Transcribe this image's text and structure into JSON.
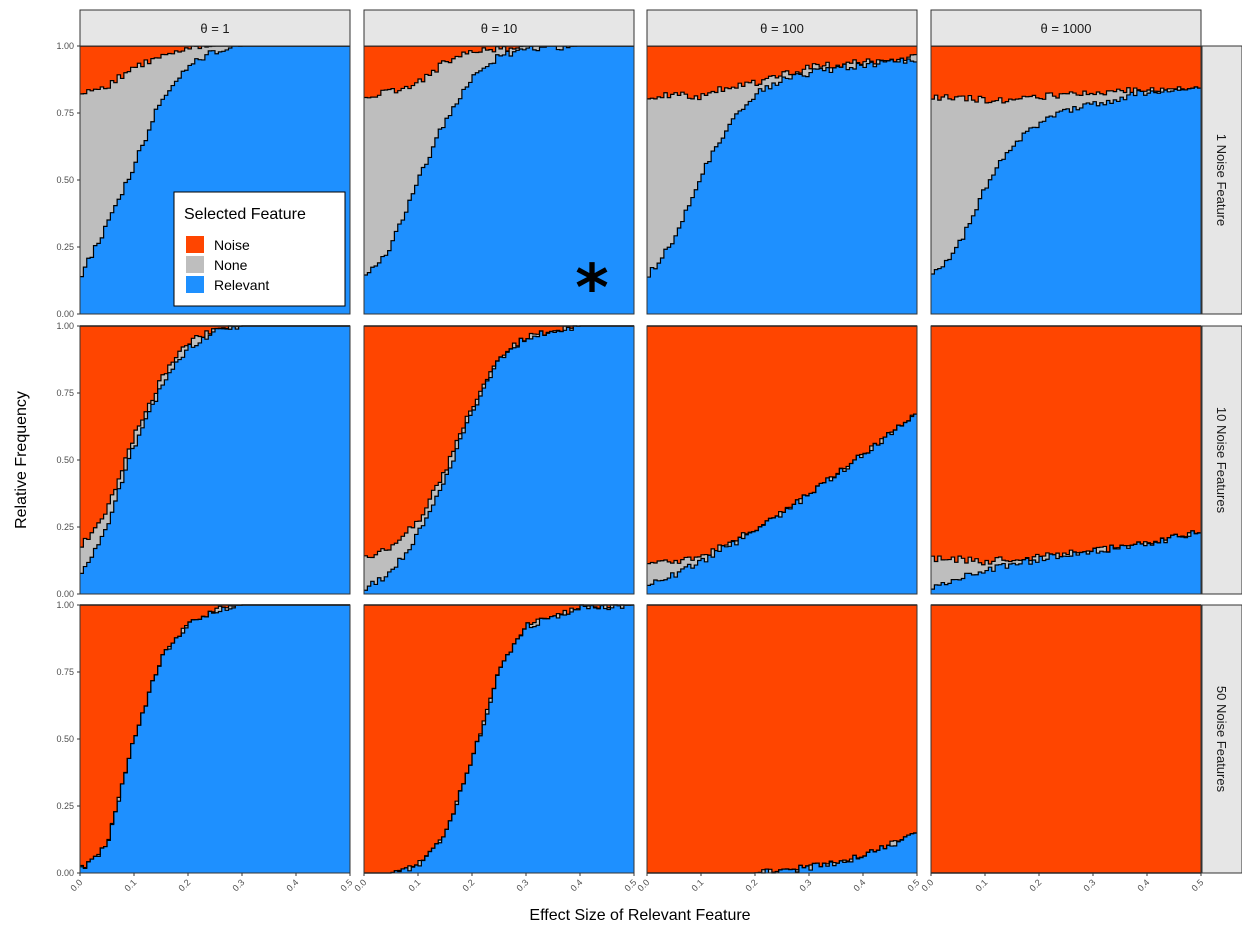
{
  "chart_data": {
    "type": "area",
    "subtype": "stacked-step-facet-grid",
    "xlabel": "Effect Size of Relevant Feature",
    "ylabel": "Relative Frequency",
    "xlim": [
      0,
      0.5
    ],
    "ylim": [
      0,
      1
    ],
    "x_ticks": [
      "0.0",
      "0.1",
      "0.2",
      "0.3",
      "0.4",
      "0.5"
    ],
    "x_tick_values": [
      0,
      0.1,
      0.2,
      0.3,
      0.4,
      0.5
    ],
    "y_ticks": [
      "0.00",
      "0.25",
      "0.50",
      "0.75",
      "1.00"
    ],
    "y_tick_values": [
      0,
      0.25,
      0.5,
      0.75,
      1
    ],
    "columns": [
      {
        "label": "θ = 1"
      },
      {
        "label": "θ = 10"
      },
      {
        "label": "θ = 100"
      },
      {
        "label": "θ = 1000"
      }
    ],
    "rows": [
      {
        "label": "1 Noise Feature"
      },
      {
        "label": "10 Noise Features"
      },
      {
        "label": "50 Noise Features"
      }
    ],
    "legend": {
      "title": "Selected Feature",
      "position": "inside-top-left-panel",
      "entries": [
        {
          "name": "Noise",
          "color": "#FF4500"
        },
        {
          "name": "None",
          "color": "#BEBEBE"
        },
        {
          "name": "Relevant",
          "color": "#1E90FF"
        }
      ]
    },
    "annotation": {
      "text": "*",
      "panel": [
        0,
        1
      ],
      "x": 0.43,
      "y": 0.12
    },
    "stack_order_bottom_to_top": [
      "Relevant",
      "None",
      "Noise"
    ],
    "panels": [
      [
        {
          "relevant": {
            "x": [
              0,
              0.05,
              0.1,
              0.15,
              0.2,
              0.25,
              0.3,
              0.4,
              0.5
            ],
            "y": [
              0.14,
              0.33,
              0.55,
              0.8,
              0.93,
              0.98,
              1.0,
              1.0,
              1.0
            ]
          },
          "none_top": {
            "x": [
              0,
              0.05,
              0.1,
              0.15,
              0.2,
              0.25,
              0.3,
              0.4,
              0.5
            ],
            "y": [
              0.82,
              0.85,
              0.92,
              0.96,
              0.99,
              1.0,
              1.0,
              1.0,
              1.0
            ]
          }
        },
        {
          "relevant": {
            "x": [
              0,
              0.05,
              0.1,
              0.15,
              0.2,
              0.25,
              0.3,
              0.4,
              0.5
            ],
            "y": [
              0.13,
              0.25,
              0.5,
              0.72,
              0.88,
              0.96,
              0.99,
              1.0,
              1.0
            ]
          },
          "none_top": {
            "x": [
              0,
              0.05,
              0.1,
              0.15,
              0.2,
              0.25,
              0.3,
              0.4,
              0.5
            ],
            "y": [
              0.81,
              0.83,
              0.86,
              0.94,
              0.98,
              0.99,
              1.0,
              1.0,
              1.0
            ]
          }
        },
        {
          "relevant": {
            "x": [
              0,
              0.05,
              0.1,
              0.15,
              0.2,
              0.25,
              0.3,
              0.4,
              0.5
            ],
            "y": [
              0.14,
              0.27,
              0.52,
              0.7,
              0.82,
              0.87,
              0.9,
              0.93,
              0.95
            ]
          },
          "none_top": {
            "x": [
              0,
              0.05,
              0.1,
              0.15,
              0.2,
              0.25,
              0.3,
              0.4,
              0.5
            ],
            "y": [
              0.81,
              0.82,
              0.81,
              0.85,
              0.86,
              0.89,
              0.92,
              0.94,
              0.96
            ]
          }
        },
        {
          "relevant": {
            "x": [
              0,
              0.05,
              0.1,
              0.15,
              0.2,
              0.25,
              0.3,
              0.4,
              0.5
            ],
            "y": [
              0.14,
              0.25,
              0.47,
              0.63,
              0.71,
              0.76,
              0.78,
              0.83,
              0.84
            ]
          },
          "none_top": {
            "x": [
              0,
              0.05,
              0.1,
              0.15,
              0.2,
              0.25,
              0.3,
              0.4,
              0.5
            ],
            "y": [
              0.81,
              0.81,
              0.8,
              0.8,
              0.81,
              0.82,
              0.82,
              0.84,
              0.84
            ]
          }
        }
      ],
      [
        {
          "relevant": {
            "x": [
              0,
              0.05,
              0.1,
              0.15,
              0.2,
              0.25,
              0.3,
              0.4,
              0.5
            ],
            "y": [
              0.07,
              0.25,
              0.55,
              0.77,
              0.92,
              0.98,
              1.0,
              1.0,
              1.0
            ]
          },
          "none_top": {
            "x": [
              0,
              0.05,
              0.1,
              0.15,
              0.2,
              0.25,
              0.3,
              0.4,
              0.5
            ],
            "y": [
              0.17,
              0.31,
              0.59,
              0.8,
              0.94,
              0.99,
              1.0,
              1.0,
              1.0
            ]
          }
        },
        {
          "relevant": {
            "x": [
              0,
              0.05,
              0.1,
              0.15,
              0.2,
              0.25,
              0.3,
              0.4,
              0.5
            ],
            "y": [
              0.02,
              0.08,
              0.22,
              0.43,
              0.68,
              0.87,
              0.96,
              1.0,
              1.0
            ]
          },
          "none_top": {
            "x": [
              0,
              0.05,
              0.1,
              0.15,
              0.2,
              0.25,
              0.3,
              0.4,
              0.5
            ],
            "y": [
              0.13,
              0.17,
              0.27,
              0.46,
              0.7,
              0.88,
              0.96,
              1.0,
              1.0
            ]
          }
        },
        {
          "relevant": {
            "x": [
              0,
              0.05,
              0.1,
              0.15,
              0.2,
              0.25,
              0.3,
              0.4,
              0.5
            ],
            "y": [
              0.03,
              0.07,
              0.12,
              0.18,
              0.23,
              0.3,
              0.37,
              0.52,
              0.67
            ]
          },
          "none_top": {
            "x": [
              0,
              0.05,
              0.1,
              0.15,
              0.2,
              0.25,
              0.3,
              0.4,
              0.5
            ],
            "y": [
              0.12,
              0.12,
              0.14,
              0.19,
              0.24,
              0.3,
              0.37,
              0.52,
              0.67
            ]
          }
        },
        {
          "relevant": {
            "x": [
              0,
              0.05,
              0.1,
              0.15,
              0.2,
              0.25,
              0.3,
              0.4,
              0.5
            ],
            "y": [
              0.02,
              0.06,
              0.09,
              0.11,
              0.13,
              0.15,
              0.16,
              0.19,
              0.23
            ]
          },
          "none_top": {
            "x": [
              0,
              0.05,
              0.1,
              0.15,
              0.2,
              0.25,
              0.3,
              0.4,
              0.5
            ],
            "y": [
              0.13,
              0.13,
              0.12,
              0.13,
              0.14,
              0.15,
              0.16,
              0.19,
              0.23
            ]
          }
        }
      ],
      [
        {
          "relevant": {
            "x": [
              0,
              0.05,
              0.1,
              0.15,
              0.2,
              0.25,
              0.3,
              0.4,
              0.5
            ],
            "y": [
              0.01,
              0.1,
              0.5,
              0.8,
              0.93,
              0.98,
              1.0,
              1.0,
              1.0
            ]
          },
          "none_top": {
            "x": [
              0,
              0.05,
              0.1,
              0.15,
              0.2,
              0.25,
              0.3,
              0.4,
              0.5
            ],
            "y": [
              0.01,
              0.1,
              0.5,
              0.8,
              0.93,
              0.98,
              1.0,
              1.0,
              1.0
            ]
          }
        },
        {
          "relevant": {
            "x": [
              0,
              0.05,
              0.1,
              0.15,
              0.2,
              0.25,
              0.3,
              0.4,
              0.5
            ],
            "y": [
              0.0,
              0.0,
              0.03,
              0.14,
              0.42,
              0.75,
              0.92,
              0.99,
              1.0
            ]
          },
          "none_top": {
            "x": [
              0,
              0.05,
              0.1,
              0.15,
              0.2,
              0.25,
              0.3,
              0.4,
              0.5
            ],
            "y": [
              0.0,
              0.0,
              0.03,
              0.14,
              0.42,
              0.75,
              0.92,
              0.99,
              1.0
            ]
          }
        },
        {
          "relevant": {
            "x": [
              0,
              0.05,
              0.1,
              0.15,
              0.2,
              0.25,
              0.3,
              0.4,
              0.5
            ],
            "y": [
              0.0,
              0.0,
              0.0,
              0.0,
              0.0,
              0.01,
              0.02,
              0.06,
              0.15
            ]
          },
          "none_top": {
            "x": [
              0,
              0.05,
              0.1,
              0.15,
              0.2,
              0.25,
              0.3,
              0.4,
              0.5
            ],
            "y": [
              0.0,
              0.0,
              0.0,
              0.0,
              0.0,
              0.01,
              0.02,
              0.06,
              0.15
            ]
          }
        },
        {
          "relevant": {
            "x": [
              0,
              0.5
            ],
            "y": [
              0.0,
              0.0
            ]
          },
          "none_top": {
            "x": [
              0,
              0.5
            ],
            "y": [
              0.0,
              0.0
            ]
          }
        }
      ]
    ]
  }
}
